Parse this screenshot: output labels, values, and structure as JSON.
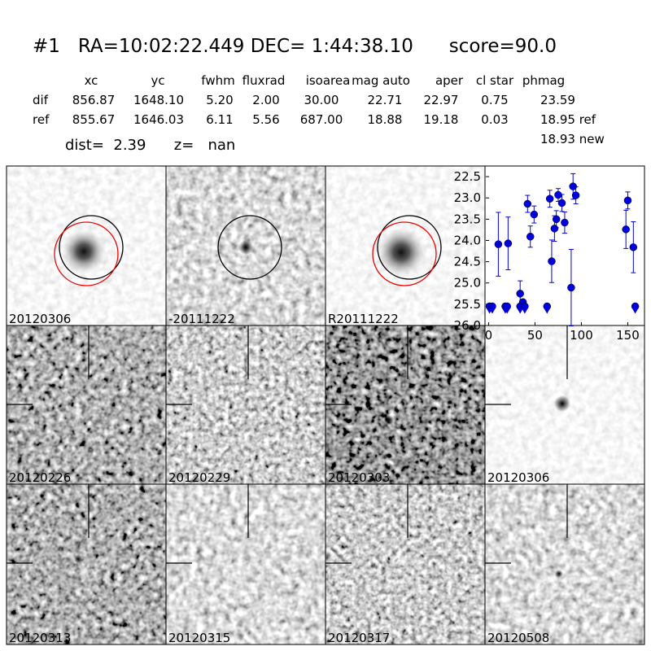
{
  "header": {
    "title": "#1   RA=10:02:22.449 DEC= 1:44:38.10      score=90.0"
  },
  "table": {
    "columns": [
      "xc",
      "yc",
      "fwhm",
      "fluxrad",
      "isoarea",
      "mag auto",
      "aper",
      "cl star",
      "phmag"
    ],
    "rows": [
      [
        "dif",
        "856.87",
        "1648.10",
        "5.20",
        "2.00",
        "30.00",
        "22.71",
        "22.97",
        "0.75",
        "23.59"
      ],
      [
        "ref",
        "855.67",
        "1646.03",
        "6.11",
        "5.56",
        "687.00",
        "18.88",
        "19.18",
        "0.03",
        "18.95 ref"
      ]
    ],
    "extra": "18.93 new"
  },
  "dist_line": "dist=  2.39      z=   nan",
  "panels": [
    "20120306",
    "-20111222",
    "R20111222",
    "20120226",
    "20120229",
    "20120303",
    "20120306",
    "20120313",
    "20120315",
    "20120317",
    "20120508"
  ],
  "chart_data": {
    "type": "scatter",
    "x": [
      10.5,
      21,
      34,
      42,
      45,
      49,
      66,
      68,
      71,
      73,
      75,
      79,
      82,
      89,
      91,
      94,
      148,
      150,
      156
    ],
    "values": [
      24.09,
      24.07,
      25.25,
      23.14,
      23.91,
      23.39,
      23.02,
      24.49,
      23.72,
      23.5,
      22.93,
      23.12,
      23.58,
      25.11,
      22.73,
      22.94,
      23.74,
      23.06,
      24.16
    ],
    "errors": [
      0.75,
      0.62,
      0.3,
      0.2,
      0.25,
      0.2,
      0.2,
      0.5,
      0.3,
      0.2,
      0.15,
      0.2,
      0.25,
      0.9,
      0.3,
      0.2,
      0.45,
      0.2,
      0.6
    ],
    "upper_limits": {
      "x": [
        1,
        4,
        18,
        20,
        34,
        37,
        39,
        63,
        158
      ],
      "values": [
        25.55,
        25.55,
        25.55,
        25.55,
        25.55,
        25.45,
        25.55,
        25.55,
        25.55
      ]
    },
    "color": "#0000dd",
    "xlim": [
      -3,
      168
    ],
    "ylim": [
      26.0,
      22.25
    ],
    "xticks": [
      0,
      50,
      100,
      150
    ],
    "yticks": [
      22.5,
      {
        "value": 23,
        "label": "23.0"
      },
      23.5,
      {
        "value": 24,
        "label": "24.0"
      },
      24.5,
      {
        "value": 25,
        "label": "25.0"
      },
      25.5,
      {
        "value": 26,
        "label": "26.0"
      }
    ]
  }
}
